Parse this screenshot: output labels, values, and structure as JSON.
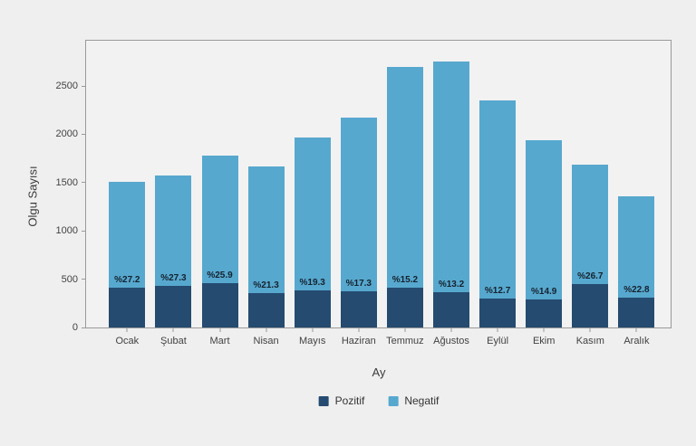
{
  "chart_data": {
    "type": "bar",
    "stacked": true,
    "title": "",
    "xlabel": "Ay",
    "ylabel": "Olgu Sayısı",
    "categories": [
      "Ocak",
      "Şubat",
      "Mart",
      "Nisan",
      "Mayıs",
      "Haziran",
      "Temmuz",
      "Ağustos",
      "Eylül",
      "Ekim",
      "Kasım",
      "Aralık"
    ],
    "series": [
      {
        "name": "Pozitif",
        "color": "#254b70",
        "values": [
          410,
          430,
          460,
          355,
          380,
          375,
          410,
          365,
          300,
          290,
          450,
          310
        ]
      },
      {
        "name": "Negatif",
        "color": "#57a8ce",
        "values": [
          1100,
          1145,
          1315,
          1310,
          1590,
          1795,
          2290,
          2390,
          2055,
          1650,
          1235,
          1050
        ]
      }
    ],
    "totals": [
      1510,
      1575,
      1775,
      1665,
      1970,
      2170,
      2700,
      2755,
      2355,
      1940,
      1685,
      1360
    ],
    "bar_labels": [
      "%27.2",
      "%27.3",
      "%25.9",
      "%21.3",
      "%19.3",
      "%17.3",
      "%15.2",
      "%13.2",
      "%12.7",
      "%14.9",
      "%26.7",
      "%22.8"
    ],
    "yticks": [
      0,
      500,
      1000,
      1500,
      2000,
      2500
    ],
    "ylim": [
      0,
      2987
    ],
    "grid": false,
    "legend_position": "bottom",
    "plot_background": "#f2f2f2",
    "page_background": "#efefef",
    "frame_color": "#9a9a9a"
  }
}
